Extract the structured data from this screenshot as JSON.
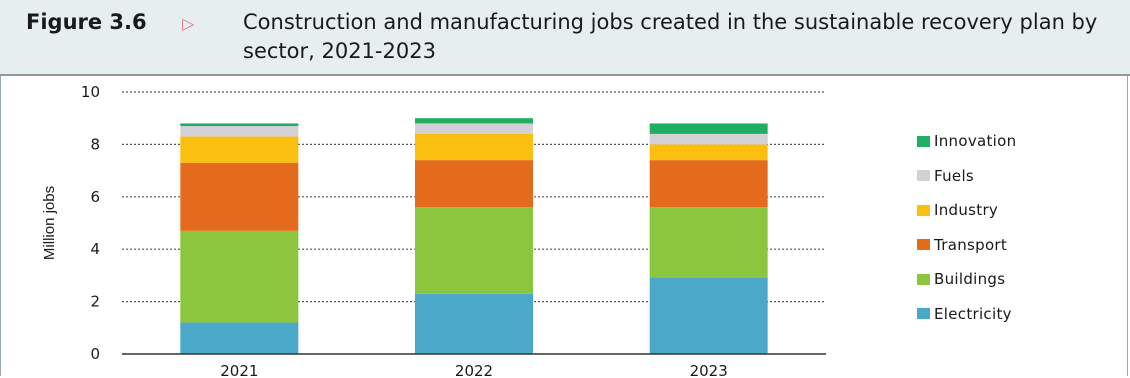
{
  "figure": {
    "label": "Figure 3.6",
    "arrow": "▷",
    "title": "Construction and manufacturing jobs created in the sustainable recovery plan by sector, 2021-2023"
  },
  "chart_data": {
    "type": "bar",
    "stacked": true,
    "title": "Construction and manufacturing jobs created in the sustainable recovery plan by sector, 2021-2023",
    "xlabel": "",
    "ylabel": "Million jobs",
    "ylim": [
      0,
      10
    ],
    "yticks": [
      0,
      2,
      4,
      6,
      8,
      10
    ],
    "grid": "dotted horizontal",
    "legend_position": "right",
    "categories": [
      "2021",
      "2022",
      "2023"
    ],
    "series": [
      {
        "name": "Electricity",
        "color": "#4aa8c8",
        "values": [
          1.2,
          2.3,
          2.9
        ]
      },
      {
        "name": "Buildings",
        "color": "#8cc63e",
        "values": [
          3.5,
          3.3,
          2.7
        ]
      },
      {
        "name": "Transport",
        "color": "#e56b1c",
        "values": [
          2.6,
          1.8,
          1.8
        ]
      },
      {
        "name": "Industry",
        "color": "#fbbf10",
        "values": [
          1.0,
          1.0,
          0.6
        ]
      },
      {
        "name": "Fuels",
        "color": "#d3d1d6",
        "values": [
          0.4,
          0.4,
          0.4
        ]
      },
      {
        "name": "Innovation",
        "color": "#1fae62",
        "values": [
          0.1,
          0.2,
          0.4
        ]
      }
    ],
    "legend_order": [
      "Innovation",
      "Fuels",
      "Industry",
      "Transport",
      "Buildings",
      "Electricity"
    ]
  }
}
